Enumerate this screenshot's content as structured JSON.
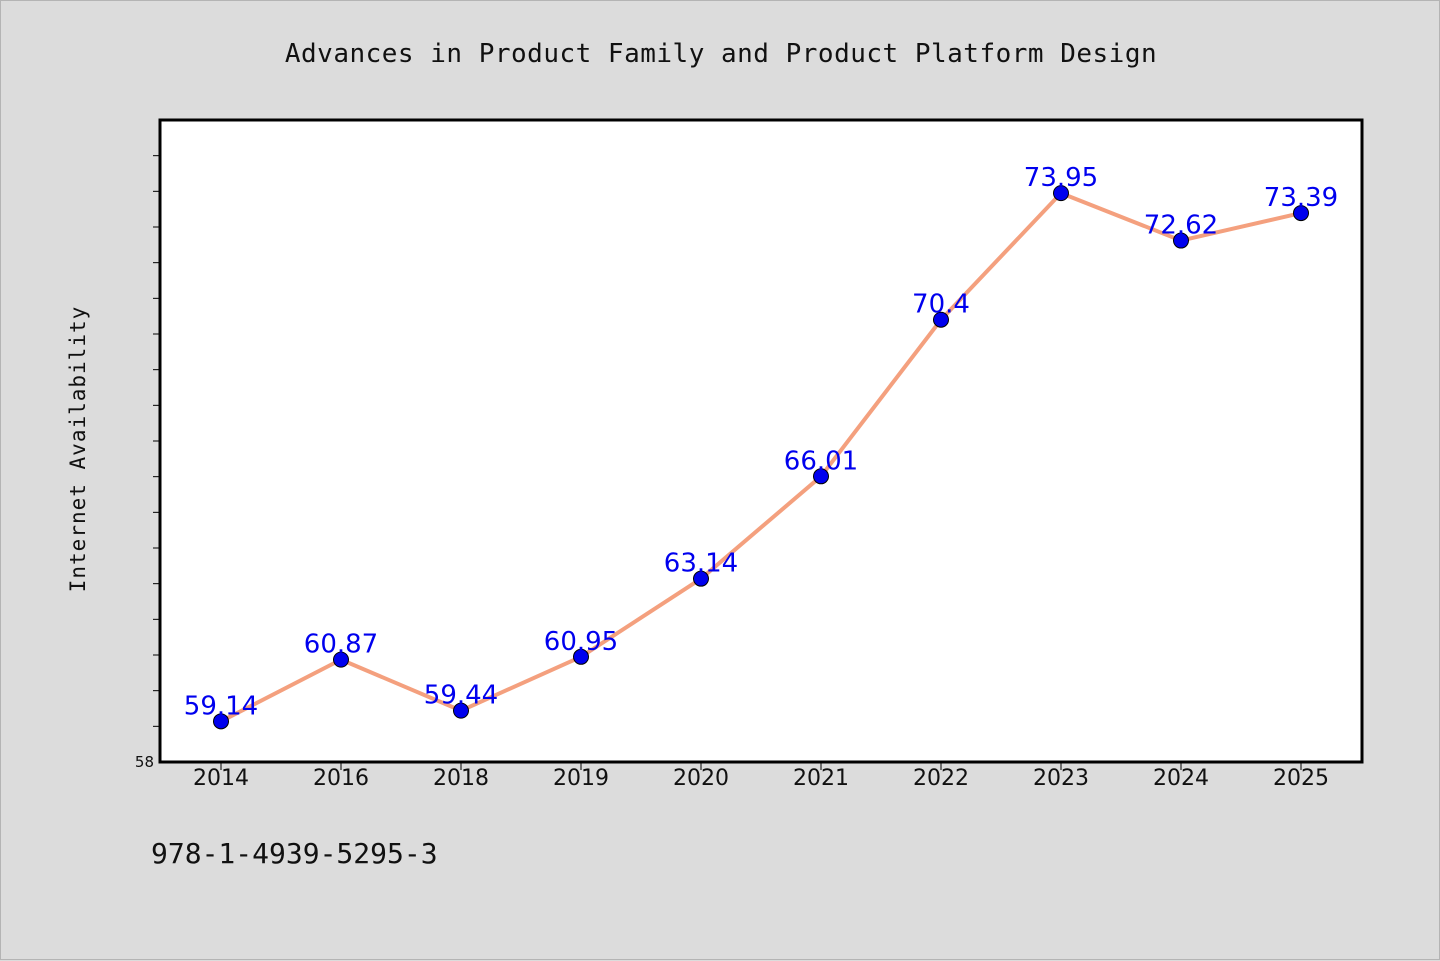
{
  "chart_data": {
    "type": "line",
    "title": "Advances in Product Family and Product Platform Design",
    "xlabel": "",
    "ylabel": "Internet Availability",
    "categories": [
      "2014",
      "2016",
      "2018",
      "2019",
      "2020",
      "2021",
      "2022",
      "2023",
      "2024",
      "2025"
    ],
    "series": [
      {
        "values": [
          59.14,
          60.87,
          59.44,
          60.95,
          63.14,
          66.01,
          70.4,
          73.95,
          72.62,
          73.39
        ],
        "labels": [
          "59.14",
          "60.87",
          "59.44",
          "60.95",
          "63.14",
          "66.01",
          "70.4",
          "73.95",
          "72.62",
          "73.39"
        ]
      }
    ],
    "ylim": [
      58,
      76
    ],
    "yticks_labeled": [
      "58"
    ],
    "grid": false,
    "line_color": "#f4a07e",
    "marker_color": "#0000ee",
    "label_color": "#0000ee"
  },
  "footer": {
    "isbn": "978-1-4939-5295-3"
  }
}
